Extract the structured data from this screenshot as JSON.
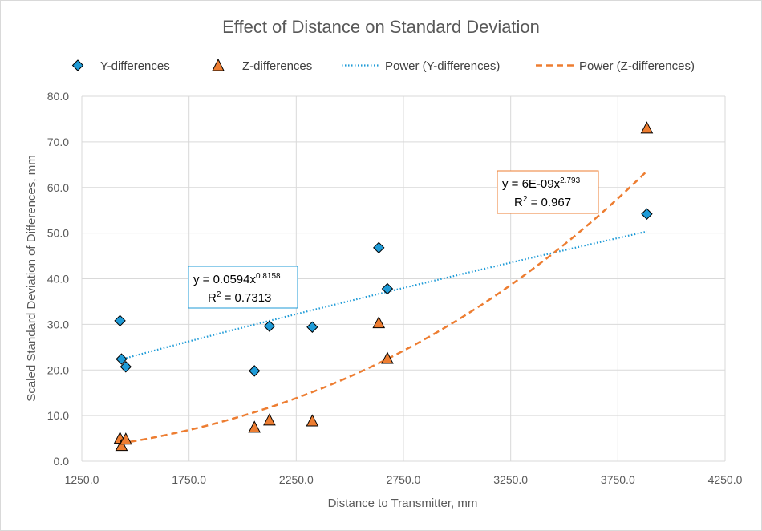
{
  "chart_data": {
    "type": "scatter",
    "title": "Effect of Distance on Standard Deviation",
    "xlabel": "Distance to Transmitter, mm",
    "ylabel": "Scaled Standard Deviation of Differences, mm",
    "xlim": [
      1250,
      4250
    ],
    "ylim": [
      0,
      80
    ],
    "x_ticks": [
      "1250.0",
      "1750.0",
      "2250.0",
      "2750.0",
      "3250.0",
      "3750.0",
      "4250.0"
    ],
    "y_ticks": [
      "0.0",
      "10.0",
      "20.0",
      "30.0",
      "40.0",
      "50.0",
      "60.0",
      "70.0",
      "80.0"
    ],
    "grid": true,
    "legend_position": "top",
    "series": [
      {
        "name": "Y-differences",
        "marker": "diamond",
        "color": "#1f9bd7",
        "points": [
          {
            "x": 1428,
            "y": 30.8
          },
          {
            "x": 1435,
            "y": 22.4
          },
          {
            "x": 1455,
            "y": 20.7
          },
          {
            "x": 2055,
            "y": 19.8
          },
          {
            "x": 2125,
            "y": 29.6
          },
          {
            "x": 2325,
            "y": 29.4
          },
          {
            "x": 2635,
            "y": 46.8
          },
          {
            "x": 2675,
            "y": 37.8
          },
          {
            "x": 3885,
            "y": 54.2
          }
        ]
      },
      {
        "name": "Z-differences",
        "marker": "triangle",
        "color": "#ed7d31",
        "points": [
          {
            "x": 1428,
            "y": 5.0
          },
          {
            "x": 1435,
            "y": 3.4
          },
          {
            "x": 1455,
            "y": 4.8
          },
          {
            "x": 2055,
            "y": 7.4
          },
          {
            "x": 2125,
            "y": 9.0
          },
          {
            "x": 2325,
            "y": 8.8
          },
          {
            "x": 2635,
            "y": 30.3
          },
          {
            "x": 2675,
            "y": 22.5
          },
          {
            "x": 3885,
            "y": 73.0
          }
        ]
      }
    ],
    "trendlines": [
      {
        "name": "Power (Y-differences)",
        "type": "power",
        "coefficient": 0.0594,
        "exponent": 0.8158,
        "x_range": [
          1428,
          3885
        ],
        "color": "#1f9bd7",
        "style": "dotted",
        "equation_prefix": "y = 0.0594x",
        "equation_exponent": "0.8158",
        "r_squared_label": "R",
        "r_squared_sup": "2",
        "r_squared_value": " = 0.7313"
      },
      {
        "name": "Power (Z-differences)",
        "type": "power",
        "coefficient": 6e-09,
        "exponent": 2.793,
        "x_range": [
          1428,
          3885
        ],
        "color": "#ed7d31",
        "style": "dashed",
        "equation_prefix": "y = 6E-09x",
        "equation_exponent": "2.793",
        "r_squared_label": "R",
        "r_squared_sup": "2",
        "r_squared_value": " = 0.967"
      }
    ]
  }
}
